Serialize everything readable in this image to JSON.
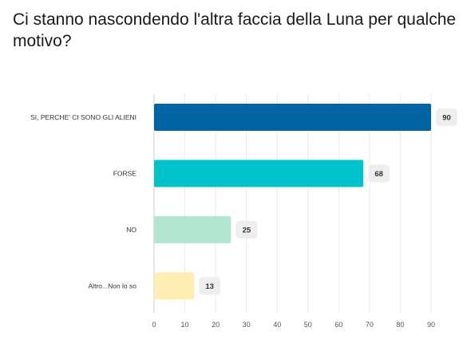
{
  "chart_data": {
    "type": "bar",
    "orientation": "horizontal",
    "title": "Ci stanno nascondendo l'altra faccia della Luna per qualche motivo?",
    "categories": [
      "SI, PERCHE' CI SONO GLI ALIENI",
      "FORSE",
      "NO",
      "Altro...Non lo so"
    ],
    "values": [
      90,
      68,
      25,
      13
    ],
    "colors": [
      "#0064a3",
      "#00c4cb",
      "#b3e6d3",
      "#ffedb3"
    ],
    "xlim": [
      0,
      90
    ],
    "ticks": [
      0,
      10,
      20,
      30,
      40,
      50,
      60,
      70,
      80,
      90
    ],
    "grid": true,
    "data_labels": true
  }
}
